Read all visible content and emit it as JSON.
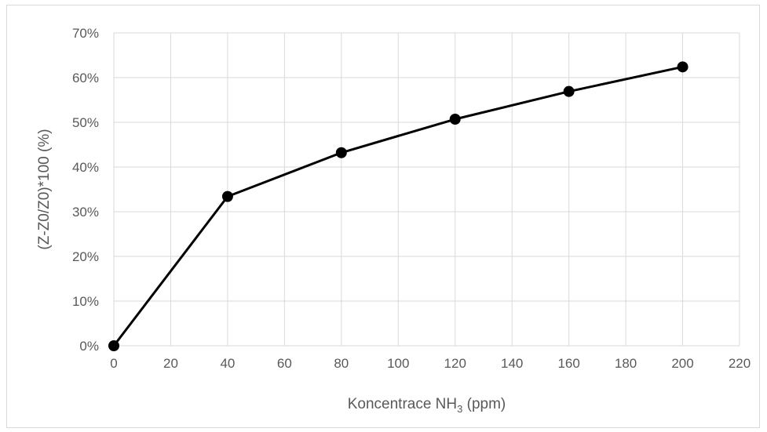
{
  "chart_data": {
    "type": "line",
    "title": "",
    "xlabel": "Koncentrace NH",
    "xlabel_subscript": "3",
    "xlabel_suffix": " (ppm)",
    "ylabel": "(Z-Z0/Z0)*100 (%)",
    "xlim": [
      0,
      220
    ],
    "ylim": [
      0,
      0.7
    ],
    "x_ticks": [
      0,
      20,
      40,
      60,
      80,
      100,
      120,
      140,
      160,
      180,
      200,
      220
    ],
    "x_tick_labels": [
      "0",
      "20",
      "40",
      "60",
      "80",
      "100",
      "120",
      "140",
      "160",
      "180",
      "200",
      "220"
    ],
    "y_ticks": [
      0,
      0.1,
      0.2,
      0.3,
      0.4,
      0.5,
      0.6,
      0.7
    ],
    "y_tick_labels": [
      "0%",
      "10%",
      "20%",
      "30%",
      "40%",
      "50%",
      "60%",
      "70%"
    ],
    "grid": true,
    "legend": "none",
    "series": [
      {
        "x": [
          0,
          40,
          80,
          120,
          160,
          200
        ],
        "y": [
          0.0,
          0.334,
          0.432,
          0.507,
          0.569,
          0.624
        ],
        "color": "#000000",
        "marker": "circle"
      }
    ]
  }
}
